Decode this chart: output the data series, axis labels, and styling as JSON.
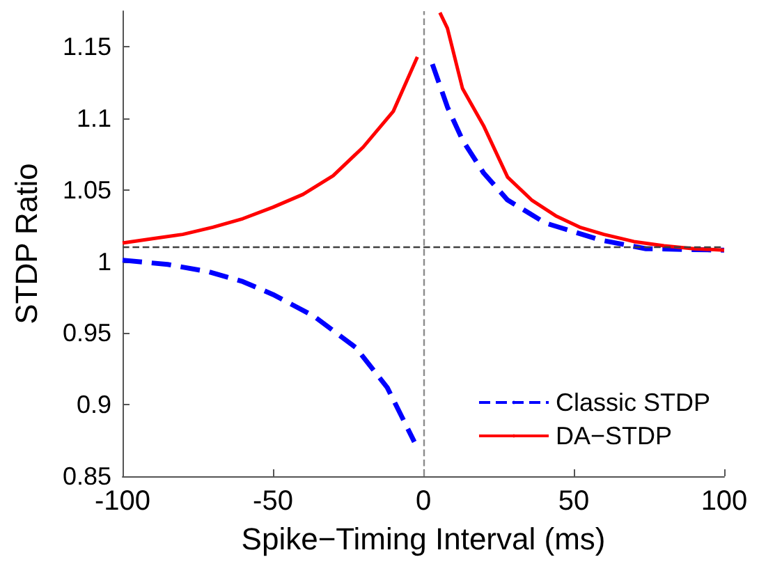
{
  "chart_data": {
    "type": "line",
    "xlabel": "Spike−Timing Interval (ms)",
    "ylabel": "STDP Ratio",
    "xlim": [
      -100,
      100
    ],
    "xticks": [
      -100,
      -50,
      0,
      50,
      100
    ],
    "ylim": [
      0.85,
      1.175
    ],
    "yticks": [
      0.85,
      0.9,
      0.95,
      1,
      1.05,
      1.1,
      1.15
    ],
    "grid": false,
    "legend": "bottom right",
    "marker": "none",
    "series": [
      {
        "name": "Classic STDP",
        "color": "#0000ff",
        "line_style": "dashed",
        "x": [
          -100,
          -85,
          -71.5,
          -60,
          -50,
          -36.5,
          -22.5,
          -12,
          -3,
          0,
          3,
          8,
          13,
          20,
          28,
          40.5,
          59,
          74,
          100
        ],
        "values": [
          1.001,
          0.998,
          0.993,
          0.986,
          0.977,
          0.962,
          0.94,
          0.912,
          0.874,
          null,
          1.138,
          1.108,
          1.085,
          1.062,
          1.043,
          1.027,
          1.015,
          1.009,
          1.008
        ]
      },
      {
        "name": "DA−STDP",
        "color": "#ff0000",
        "line_style": "solid",
        "x": [
          -100,
          -90,
          -80,
          -70,
          -60,
          -50,
          -40,
          -30,
          -20,
          -10,
          -2,
          0,
          5.5,
          8,
          13,
          20,
          28,
          36,
          44,
          52,
          60,
          70,
          80,
          90,
          100
        ],
        "values": [
          1.013,
          1.016,
          1.019,
          1.024,
          1.03,
          1.038,
          1.047,
          1.06,
          1.08,
          1.105,
          1.143,
          null,
          1.174,
          1.163,
          1.121,
          1.095,
          1.059,
          1.043,
          1.032,
          1.024,
          1.019,
          1.014,
          1.011,
          1.009,
          1.008
        ]
      }
    ],
    "ref_lines": [
      {
        "axis": "y",
        "value": 1.01,
        "color": "#404040",
        "line_style": "dashed"
      },
      {
        "axis": "x",
        "value": 0,
        "color": "#8c8c8c",
        "line_style": "dashed"
      }
    ]
  }
}
